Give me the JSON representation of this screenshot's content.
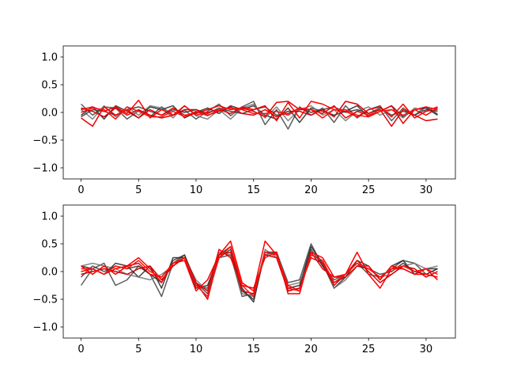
{
  "figure": {
    "background": "#ffffff"
  },
  "chart_data": [
    {
      "type": "line",
      "panel": "top",
      "xlim": [
        -1.55,
        32.55
      ],
      "ylim": [
        -1.2,
        1.2
      ],
      "xticks": [
        0,
        5,
        10,
        15,
        20,
        25,
        30
      ],
      "yticks": [
        -1.0,
        -0.5,
        0.0,
        0.5,
        1.0
      ],
      "ytick_labels": [
        "−1.0",
        "−0.5",
        "0.0",
        "0.5",
        "1.0"
      ],
      "title": "",
      "xlabel": "",
      "ylabel": "",
      "grid": false,
      "x": [
        0,
        1,
        2,
        3,
        4,
        5,
        6,
        7,
        8,
        9,
        10,
        11,
        12,
        13,
        14,
        15,
        16,
        17,
        18,
        19,
        20,
        21,
        22,
        23,
        24,
        25,
        26,
        27,
        28,
        29,
        30,
        31
      ],
      "series": [
        {
          "color": "#404040",
          "values": [
            0.15,
            -0.05,
            0.1,
            0.08,
            -0.12,
            0.03,
            -0.08,
            0.1,
            -0.05,
            0.04,
            -0.12,
            0.02,
            0.15,
            -0.06,
            0.1,
            0.2,
            -0.22,
            0.05,
            -0.3,
            0.1,
            -0.05,
            0.08,
            -0.18,
            0.12,
            -0.1,
            0.05,
            0.12,
            -0.15,
            0.08,
            -0.05,
            0.1,
            -0.03
          ]
        },
        {
          "color": "#202020",
          "values": [
            -0.05,
            0.1,
            -0.12,
            0.12,
            0.02,
            -0.1,
            0.1,
            0.05,
            0.12,
            -0.1,
            0.0,
            0.08,
            -0.02,
            0.12,
            0.05,
            0.12,
            -0.05,
            -0.12,
            0.08,
            -0.18,
            0.08,
            0.02,
            -0.05,
            0.02,
            0.12,
            -0.08,
            0.02,
            0.12,
            -0.08,
            0.05,
            0.08,
            -0.05
          ]
        },
        {
          "color": "#707070",
          "values": [
            0.05,
            -0.12,
            0.12,
            -0.08,
            0.1,
            -0.05,
            0.12,
            0.08,
            -0.1,
            0.12,
            -0.06,
            -0.12,
            0.05,
            -0.12,
            0.08,
            0.15,
            -0.1,
            0.1,
            -0.15,
            0.05,
            0.12,
            -0.05,
            0.05,
            -0.15,
            0.02,
            0.1,
            -0.05,
            0.05,
            -0.1,
            0.08,
            0.02,
            0.05
          ]
        },
        {
          "color": "#303030",
          "values": [
            -0.08,
            0.05,
            0.02,
            -0.05,
            0.05,
            0.1,
            0.02,
            -0.05,
            0.05,
            0.0,
            0.05,
            -0.02,
            0.08,
            0.02,
            -0.02,
            0.05,
            0.1,
            -0.05,
            -0.02,
            0.08,
            0.0,
            0.05,
            0.1,
            0.0,
            0.05,
            -0.02,
            0.08,
            -0.05,
            0.02,
            -0.05,
            0.05,
            0.02
          ]
        },
        {
          "color": "#ff0000",
          "values": [
            0.05,
            0.1,
            0.02,
            0.1,
            -0.02,
            0.22,
            -0.1,
            0.05,
            -0.05,
            0.12,
            -0.05,
            0.0,
            0.05,
            -0.02,
            0.1,
            0.05,
            0.12,
            -0.15,
            0.18,
            -0.1,
            0.2,
            0.15,
            0.05,
            0.02,
            -0.08,
            0.05,
            0.1,
            -0.08,
            0.15,
            -0.1,
            0.02,
            0.1
          ]
        },
        {
          "color": "#ee0000",
          "values": [
            -0.1,
            -0.25,
            0.1,
            -0.05,
            0.05,
            -0.1,
            0.05,
            -0.05,
            0.08,
            -0.05,
            -0.02,
            0.05,
            0.12,
            0.05,
            0.08,
            0.02,
            -0.08,
            0.18,
            0.2,
            0.05,
            0.05,
            -0.02,
            0.12,
            -0.1,
            0.02,
            -0.05,
            0.02,
            0.12,
            -0.2,
            0.05,
            -0.05,
            0.08
          ]
        },
        {
          "color": "#dd0000",
          "values": [
            0.08,
            0.02,
            -0.08,
            0.08,
            -0.05,
            0.05,
            -0.05,
            -0.1,
            -0.05,
            0.05,
            0.05,
            -0.05,
            0.02,
            0.1,
            -0.02,
            -0.05,
            0.05,
            -0.08,
            0.02,
            0.02,
            -0.05,
            0.05,
            -0.08,
            0.2,
            0.15,
            -0.02,
            0.05,
            -0.25,
            0.05,
            -0.05,
            -0.15,
            -0.12
          ]
        },
        {
          "color": "#ff1010",
          "values": [
            0.0,
            0.08,
            0.05,
            -0.12,
            0.1,
            0.02,
            -0.08,
            -0.08,
            0.02,
            -0.08,
            0.02,
            -0.06,
            0.05,
            0.08,
            0.05,
            -0.02,
            -0.02,
            0.02,
            -0.05,
            0.08,
            0.05,
            -0.1,
            0.05,
            0.05,
            -0.05,
            -0.08,
            0.02,
            0.05,
            -0.05,
            0.05,
            0.1,
            0.05
          ]
        }
      ]
    },
    {
      "type": "line",
      "panel": "bottom",
      "xlim": [
        -1.55,
        32.55
      ],
      "ylim": [
        -1.2,
        1.2
      ],
      "xticks": [
        0,
        5,
        10,
        15,
        20,
        25,
        30
      ],
      "yticks": [
        -1.0,
        -0.5,
        0.0,
        0.5,
        1.0
      ],
      "ytick_labels": [
        "−1.0",
        "−0.5",
        "0.0",
        "0.5",
        "1.0"
      ],
      "title": "",
      "xlabel": "",
      "ylabel": "",
      "grid": false,
      "x": [
        0,
        1,
        2,
        3,
        4,
        5,
        6,
        7,
        8,
        9,
        10,
        11,
        12,
        13,
        14,
        15,
        16,
        17,
        18,
        19,
        20,
        21,
        22,
        23,
        24,
        25,
        26,
        27,
        28,
        29,
        30,
        31
      ],
      "series": [
        {
          "color": "#404040",
          "values": [
            -0.25,
            0.05,
            0.15,
            -0.25,
            -0.15,
            0.1,
            -0.05,
            -0.45,
            0.15,
            0.3,
            -0.25,
            -0.3,
            0.25,
            0.3,
            -0.45,
            -0.4,
            0.3,
            0.35,
            -0.2,
            -0.15,
            0.5,
            0.1,
            -0.15,
            -0.05,
            0.15,
            -0.05,
            -0.1,
            0.05,
            0.2,
            0.15,
            -0.05,
            0.05
          ]
        },
        {
          "color": "#202020",
          "values": [
            0.1,
            0.05,
            -0.05,
            0.15,
            0.1,
            -0.1,
            0.1,
            -0.3,
            0.25,
            0.25,
            -0.3,
            -0.25,
            0.3,
            0.45,
            -0.3,
            -0.55,
            0.35,
            0.3,
            -0.3,
            -0.25,
            0.45,
            0.15,
            -0.3,
            -0.1,
            0.2,
            0.1,
            -0.15,
            0.1,
            0.2,
            -0.05,
            0.05,
            0.05
          ]
        },
        {
          "color": "#707070",
          "values": [
            0.1,
            0.15,
            0.1,
            0.05,
            -0.05,
            -0.1,
            -0.15,
            -0.05,
            0.1,
            0.25,
            -0.15,
            -0.35,
            0.35,
            0.3,
            -0.4,
            -0.45,
            0.4,
            0.25,
            -0.25,
            -0.2,
            0.3,
            0.2,
            -0.3,
            -0.15,
            0.1,
            0.05,
            -0.1,
            -0.05,
            0.1,
            0.15,
            0.05,
            0.1
          ]
        },
        {
          "color": "#303030",
          "values": [
            -0.1,
            0.1,
            0.0,
            0.1,
            0.05,
            0.1,
            -0.05,
            -0.2,
            0.2,
            0.3,
            -0.2,
            -0.4,
            0.25,
            0.4,
            -0.35,
            -0.5,
            0.35,
            0.35,
            -0.35,
            -0.3,
            0.4,
            0.1,
            -0.2,
            -0.1,
            0.1,
            0.05,
            -0.05,
            0.0,
            0.15,
            0.0,
            -0.05,
            0.05
          ]
        },
        {
          "color": "#ff0000",
          "values": [
            0.0,
            0.05,
            -0.05,
            0.05,
            0.1,
            0.25,
            0.05,
            -0.2,
            0.15,
            0.2,
            -0.35,
            -0.15,
            0.3,
            0.55,
            -0.2,
            -0.35,
            0.55,
            0.3,
            -0.25,
            -0.35,
            0.35,
            0.25,
            -0.1,
            -0.05,
            0.35,
            -0.05,
            -0.3,
            0.05,
            0.05,
            -0.05,
            -0.05,
            -0.1
          ]
        },
        {
          "color": "#ee0000",
          "values": [
            0.1,
            -0.05,
            0.1,
            -0.05,
            0.1,
            0.15,
            -0.05,
            -0.1,
            0.15,
            0.25,
            -0.2,
            -0.35,
            0.4,
            0.25,
            -0.25,
            -0.3,
            0.25,
            0.35,
            -0.4,
            -0.4,
            0.35,
            0.05,
            -0.1,
            -0.1,
            0.1,
            0.1,
            -0.15,
            0.1,
            0.05,
            -0.05,
            0.05,
            -0.15
          ]
        },
        {
          "color": "#dd0000",
          "values": [
            -0.05,
            0.0,
            0.05,
            0.0,
            -0.05,
            0.05,
            0.1,
            -0.15,
            0.1,
            0.25,
            -0.2,
            -0.5,
            0.3,
            0.35,
            -0.35,
            -0.4,
            0.3,
            0.25,
            -0.35,
            -0.3,
            0.25,
            0.15,
            -0.25,
            -0.05,
            0.2,
            0.0,
            -0.2,
            -0.05,
            0.1,
            0.05,
            -0.1,
            0.0
          ]
        },
        {
          "color": "#ff1010",
          "values": [
            0.05,
            0.05,
            -0.05,
            0.1,
            0.05,
            0.2,
            0.0,
            -0.1,
            0.15,
            0.25,
            -0.25,
            -0.45,
            0.25,
            0.45,
            -0.25,
            -0.45,
            0.35,
            0.3,
            -0.3,
            -0.35,
            0.3,
            0.2,
            -0.2,
            -0.05,
            0.15,
            0.05,
            -0.1,
            0.05,
            0.1,
            0.0,
            0.05,
            -0.05
          ]
        }
      ]
    }
  ]
}
